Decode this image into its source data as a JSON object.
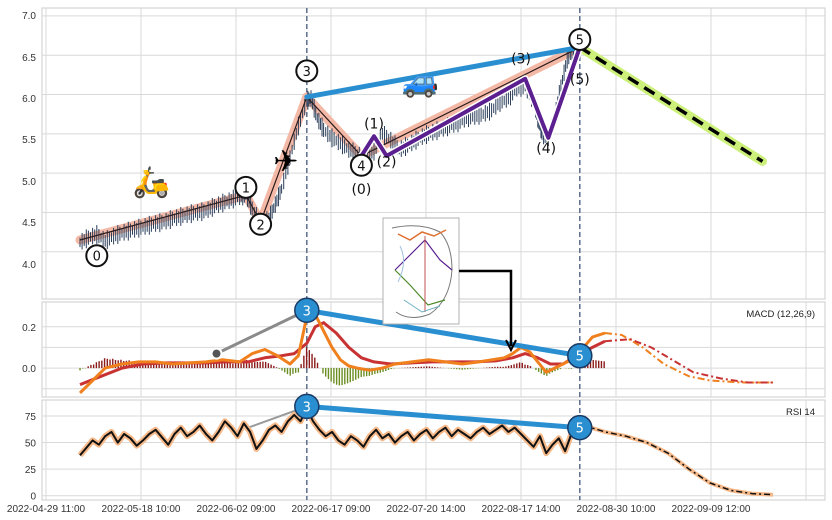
{
  "chart_data": [
    {
      "type": "line",
      "panel": "price",
      "title": "",
      "y_ticks": [
        "7.0",
        "6.5",
        "6.0",
        "5.5",
        "5.0",
        "4.5",
        "4.0"
      ],
      "ylim": [
        3.4,
        7.1
      ],
      "grid": true,
      "series": [
        {
          "role": "price-candles",
          "points": [
            [
              0,
              4.12
            ],
            [
              4,
              4.18
            ],
            [
              8,
              4.22
            ],
            [
              12,
              4.14
            ],
            [
              16,
              4.2
            ],
            [
              20,
              4.24
            ],
            [
              24,
              4.27
            ],
            [
              28,
              4.3
            ],
            [
              32,
              4.33
            ],
            [
              36,
              4.36
            ],
            [
              40,
              4.38
            ],
            [
              44,
              4.42
            ],
            [
              48,
              4.45
            ],
            [
              52,
              4.48
            ],
            [
              56,
              4.5
            ],
            [
              60,
              4.52
            ],
            [
              64,
              4.58
            ],
            [
              68,
              4.62
            ],
            [
              72,
              4.66
            ],
            [
              76,
              4.7
            ],
            [
              79,
              4.72
            ],
            [
              82,
              4.55
            ],
            [
              86,
              4.38
            ],
            [
              90,
              4.42
            ],
            [
              93,
              4.6
            ],
            [
              96,
              4.8
            ],
            [
              100,
              5.2
            ],
            [
              104,
              5.6
            ],
            [
              108,
              5.92
            ],
            [
              110,
              5.95
            ],
            [
              113,
              5.7
            ],
            [
              116,
              5.55
            ],
            [
              120,
              5.45
            ],
            [
              124,
              5.38
            ],
            [
              128,
              5.3
            ],
            [
              132,
              5.24
            ],
            [
              136,
              5.2
            ],
            [
              140,
              5.28
            ],
            [
              144,
              5.5
            ],
            [
              148,
              5.42
            ],
            [
              152,
              5.3
            ],
            [
              156,
              5.35
            ],
            [
              160,
              5.42
            ],
            [
              164,
              5.48
            ],
            [
              168,
              5.52
            ],
            [
              172,
              5.56
            ],
            [
              176,
              5.6
            ],
            [
              180,
              5.64
            ],
            [
              184,
              5.7
            ],
            [
              188,
              5.72
            ],
            [
              192,
              5.75
            ],
            [
              196,
              5.8
            ],
            [
              200,
              5.9
            ],
            [
              204,
              5.95
            ],
            [
              208,
              6.08
            ],
            [
              212,
              6.1
            ],
            [
              216,
              5.92
            ],
            [
              218,
              5.7
            ],
            [
              220,
              5.5
            ],
            [
              223,
              5.45
            ],
            [
              226,
              5.7
            ],
            [
              229,
              6.1
            ],
            [
              232,
              6.45
            ],
            [
              235,
              6.55
            ],
            [
              238,
              6.5
            ]
          ]
        },
        {
          "role": "wave-outline",
          "points": [
            [
              0,
              4.15
            ],
            [
              79,
              4.72
            ],
            [
              86,
              4.38
            ],
            [
              108,
              5.97
            ],
            [
              134,
              5.22
            ],
            [
              238,
              6.6
            ]
          ]
        }
      ],
      "counts": [
        {
          "label": "0",
          "x": 8,
          "y": 3.95,
          "circled": true
        },
        {
          "label": "1",
          "x": 79,
          "y": 4.82,
          "circled": true
        },
        {
          "label": "2",
          "x": 86,
          "y": 4.35,
          "circled": true
        },
        {
          "label": "3",
          "x": 108,
          "y": 6.3,
          "circled": true
        },
        {
          "label": "4",
          "x": 134,
          "y": 5.1,
          "circled": true
        },
        {
          "label": "5",
          "x": 238,
          "y": 6.7,
          "circled": true
        },
        {
          "label": "(0)",
          "x": 134,
          "y": 4.8,
          "circled": false
        },
        {
          "label": "(1)",
          "x": 140,
          "y": 5.63,
          "circled": false
        },
        {
          "label": "(2)",
          "x": 146,
          "y": 5.15,
          "circled": false
        },
        {
          "label": "(3)",
          "x": 210,
          "y": 6.46,
          "circled": false
        },
        {
          "label": "(4)",
          "x": 222,
          "y": 5.32,
          "circled": false
        },
        {
          "label": "(5)",
          "x": 238,
          "y": 6.2,
          "circled": false
        }
      ],
      "subwave": [
        [
          134,
          5.22
        ],
        [
          140,
          5.47
        ],
        [
          146,
          5.22
        ],
        [
          212,
          6.2
        ],
        [
          223,
          5.45
        ],
        [
          238,
          6.6
        ]
      ],
      "trendline": [
        [
          108,
          5.97
        ],
        [
          238,
          6.6
        ]
      ],
      "projection": [
        [
          238,
          6.6
        ],
        [
          325,
          5.15
        ]
      ],
      "emojis": [
        "🛵",
        "✈",
        "🚙"
      ]
    },
    {
      "type": "line",
      "panel": "macd",
      "title": "MACD (12,26,9)",
      "y_ticks": [
        "0.2",
        "0.1",
        "0.0"
      ],
      "tick_values": [
        0.2,
        0.0
      ],
      "tick_labels": [
        "0.2",
        "0.0"
      ],
      "ylim": [
        -0.14,
        0.32
      ],
      "grid": true,
      "divergence": {
        "labels": [
          "3",
          "5"
        ],
        "points": [
          [
            108,
            0.28
          ],
          [
            238,
            0.06
          ]
        ]
      },
      "macd_line": [
        [
          0,
          -0.12
        ],
        [
          6,
          -0.06
        ],
        [
          12,
          0.0
        ],
        [
          20,
          0.02
        ],
        [
          28,
          0.03
        ],
        [
          36,
          0.03
        ],
        [
          44,
          0.02
        ],
        [
          52,
          0.025
        ],
        [
          60,
          0.03
        ],
        [
          68,
          0.04
        ],
        [
          76,
          0.03
        ],
        [
          82,
          0.07
        ],
        [
          88,
          0.09
        ],
        [
          94,
          0.06
        ],
        [
          100,
          0.02
        ],
        [
          104,
          0.06
        ],
        [
          108,
          0.25
        ],
        [
          112,
          0.26
        ],
        [
          116,
          0.18
        ],
        [
          120,
          0.1
        ],
        [
          124,
          0.04
        ],
        [
          128,
          0.01
        ],
        [
          132,
          0.0
        ],
        [
          138,
          -0.01
        ],
        [
          144,
          0.0
        ],
        [
          150,
          0.02
        ],
        [
          158,
          0.03
        ],
        [
          166,
          0.04
        ],
        [
          174,
          0.03
        ],
        [
          182,
          0.02
        ],
        [
          190,
          0.03
        ],
        [
          196,
          0.04
        ],
        [
          202,
          0.05
        ],
        [
          206,
          0.07
        ],
        [
          210,
          0.1
        ],
        [
          214,
          0.08
        ],
        [
          218,
          0.03
        ],
        [
          222,
          -0.02
        ],
        [
          226,
          0.0
        ],
        [
          230,
          0.02
        ],
        [
          234,
          0.04
        ],
        [
          238,
          0.08
        ],
        [
          244,
          0.15
        ],
        [
          250,
          0.17
        ]
      ],
      "signal_line": [
        [
          0,
          -0.08
        ],
        [
          10,
          -0.04
        ],
        [
          20,
          0.0
        ],
        [
          30,
          0.02
        ],
        [
          40,
          0.025
        ],
        [
          50,
          0.025
        ],
        [
          60,
          0.025
        ],
        [
          70,
          0.03
        ],
        [
          80,
          0.03
        ],
        [
          88,
          0.05
        ],
        [
          96,
          0.06
        ],
        [
          102,
          0.07
        ],
        [
          108,
          0.12
        ],
        [
          112,
          0.2
        ],
        [
          116,
          0.22
        ],
        [
          122,
          0.17
        ],
        [
          128,
          0.1
        ],
        [
          134,
          0.05
        ],
        [
          140,
          0.03
        ],
        [
          148,
          0.02
        ],
        [
          158,
          0.025
        ],
        [
          168,
          0.03
        ],
        [
          178,
          0.03
        ],
        [
          188,
          0.03
        ],
        [
          198,
          0.035
        ],
        [
          206,
          0.05
        ],
        [
          212,
          0.07
        ],
        [
          218,
          0.05
        ],
        [
          224,
          0.02
        ],
        [
          230,
          0.02
        ],
        [
          238,
          0.07
        ],
        [
          244,
          0.1
        ],
        [
          250,
          0.13
        ]
      ],
      "projection_macd": [
        [
          250,
          0.17
        ],
        [
          258,
          0.16
        ],
        [
          268,
          0.1
        ],
        [
          278,
          0.02
        ],
        [
          290,
          -0.04
        ],
        [
          300,
          -0.06
        ],
        [
          315,
          -0.07
        ],
        [
          330,
          -0.07
        ]
      ],
      "projection_signal": [
        [
          250,
          0.13
        ],
        [
          262,
          0.14
        ],
        [
          272,
          0.1
        ],
        [
          282,
          0.04
        ],
        [
          292,
          -0.02
        ],
        [
          305,
          -0.05
        ],
        [
          318,
          -0.07
        ],
        [
          330,
          -0.07
        ]
      ],
      "histogram_colors": [
        "#8b1a1a",
        "#6b8e23"
      ]
    },
    {
      "type": "line",
      "panel": "rsi",
      "title": "RSI 14",
      "tick_values": [
        75,
        50,
        25,
        0
      ],
      "tick_labels": [
        "75",
        "50",
        "25",
        "0"
      ],
      "ylim": [
        -4,
        90
      ],
      "grid": true,
      "divergence": {
        "labels": [
          "3",
          "5"
        ],
        "points": [
          [
            108,
            84
          ],
          [
            238,
            64
          ]
        ]
      },
      "rsi": [
        [
          0,
          38
        ],
        [
          3,
          45
        ],
        [
          6,
          52
        ],
        [
          9,
          48
        ],
        [
          12,
          56
        ],
        [
          15,
          60
        ],
        [
          18,
          50
        ],
        [
          21,
          58
        ],
        [
          24,
          54
        ],
        [
          27,
          47
        ],
        [
          30,
          52
        ],
        [
          33,
          58
        ],
        [
          36,
          62
        ],
        [
          39,
          55
        ],
        [
          42,
          48
        ],
        [
          45,
          58
        ],
        [
          48,
          64
        ],
        [
          51,
          56
        ],
        [
          54,
          60
        ],
        [
          57,
          66
        ],
        [
          60,
          58
        ],
        [
          63,
          52
        ],
        [
          66,
          60
        ],
        [
          69,
          70
        ],
        [
          72,
          64
        ],
        [
          75,
          56
        ],
        [
          78,
          68
        ],
        [
          81,
          60
        ],
        [
          84,
          44
        ],
        [
          87,
          52
        ],
        [
          90,
          62
        ],
        [
          93,
          66
        ],
        [
          96,
          60
        ],
        [
          99,
          70
        ],
        [
          102,
          76
        ],
        [
          105,
          70
        ],
        [
          108,
          82
        ],
        [
          111,
          70
        ],
        [
          114,
          62
        ],
        [
          117,
          56
        ],
        [
          120,
          60
        ],
        [
          123,
          52
        ],
        [
          126,
          48
        ],
        [
          129,
          56
        ],
        [
          132,
          52
        ],
        [
          135,
          46
        ],
        [
          138,
          56
        ],
        [
          141,
          62
        ],
        [
          144,
          54
        ],
        [
          147,
          58
        ],
        [
          150,
          50
        ],
        [
          153,
          56
        ],
        [
          156,
          60
        ],
        [
          159,
          52
        ],
        [
          162,
          58
        ],
        [
          165,
          62
        ],
        [
          168,
          54
        ],
        [
          171,
          60
        ],
        [
          174,
          64
        ],
        [
          177,
          56
        ],
        [
          180,
          62
        ],
        [
          183,
          58
        ],
        [
          186,
          54
        ],
        [
          189,
          60
        ],
        [
          192,
          64
        ],
        [
          195,
          58
        ],
        [
          198,
          62
        ],
        [
          201,
          66
        ],
        [
          204,
          60
        ],
        [
          207,
          64
        ],
        [
          210,
          58
        ],
        [
          213,
          52
        ],
        [
          216,
          46
        ],
        [
          219,
          56
        ],
        [
          222,
          40
        ],
        [
          225,
          48
        ],
        [
          228,
          54
        ],
        [
          231,
          42
        ],
        [
          234,
          58
        ],
        [
          237,
          62
        ],
        [
          240,
          66
        ]
      ],
      "projection_rsi": [
        [
          240,
          66
        ],
        [
          250,
          60
        ],
        [
          260,
          56
        ],
        [
          270,
          50
        ],
        [
          280,
          40
        ],
        [
          290,
          25
        ],
        [
          300,
          12
        ],
        [
          310,
          5
        ],
        [
          320,
          2
        ],
        [
          330,
          1
        ]
      ],
      "bullish_divergence_connector": [
        [
          80,
          64
        ],
        [
          108,
          84
        ]
      ]
    }
  ],
  "x_tick_labels": [
    "2022-04-29 11:00",
    "2022-05-18 10:00",
    "2022-06-02 09:00",
    "2022-06-17 09:00",
    "2022-07-20 14:00",
    "2022-08-17 14:00",
    "2022-08-30 10:00",
    "2022-09-09 12:00"
  ],
  "colors": {
    "wave_outline": "#f4b9a6",
    "subwave": "#5b1f8f",
    "trendline": "#2a8fd0",
    "projection": "#000000",
    "projection_halo": "#ccf07a",
    "macd": "#f0801e",
    "signal": "#c93232",
    "rsi_halo": "#f6b98a",
    "marker_fill": "#2a8fd0",
    "grid": "#d9d9d9",
    "vline": "#5a6e8c"
  },
  "icons": {
    "inset": "pattern-thumbnail-icon"
  }
}
